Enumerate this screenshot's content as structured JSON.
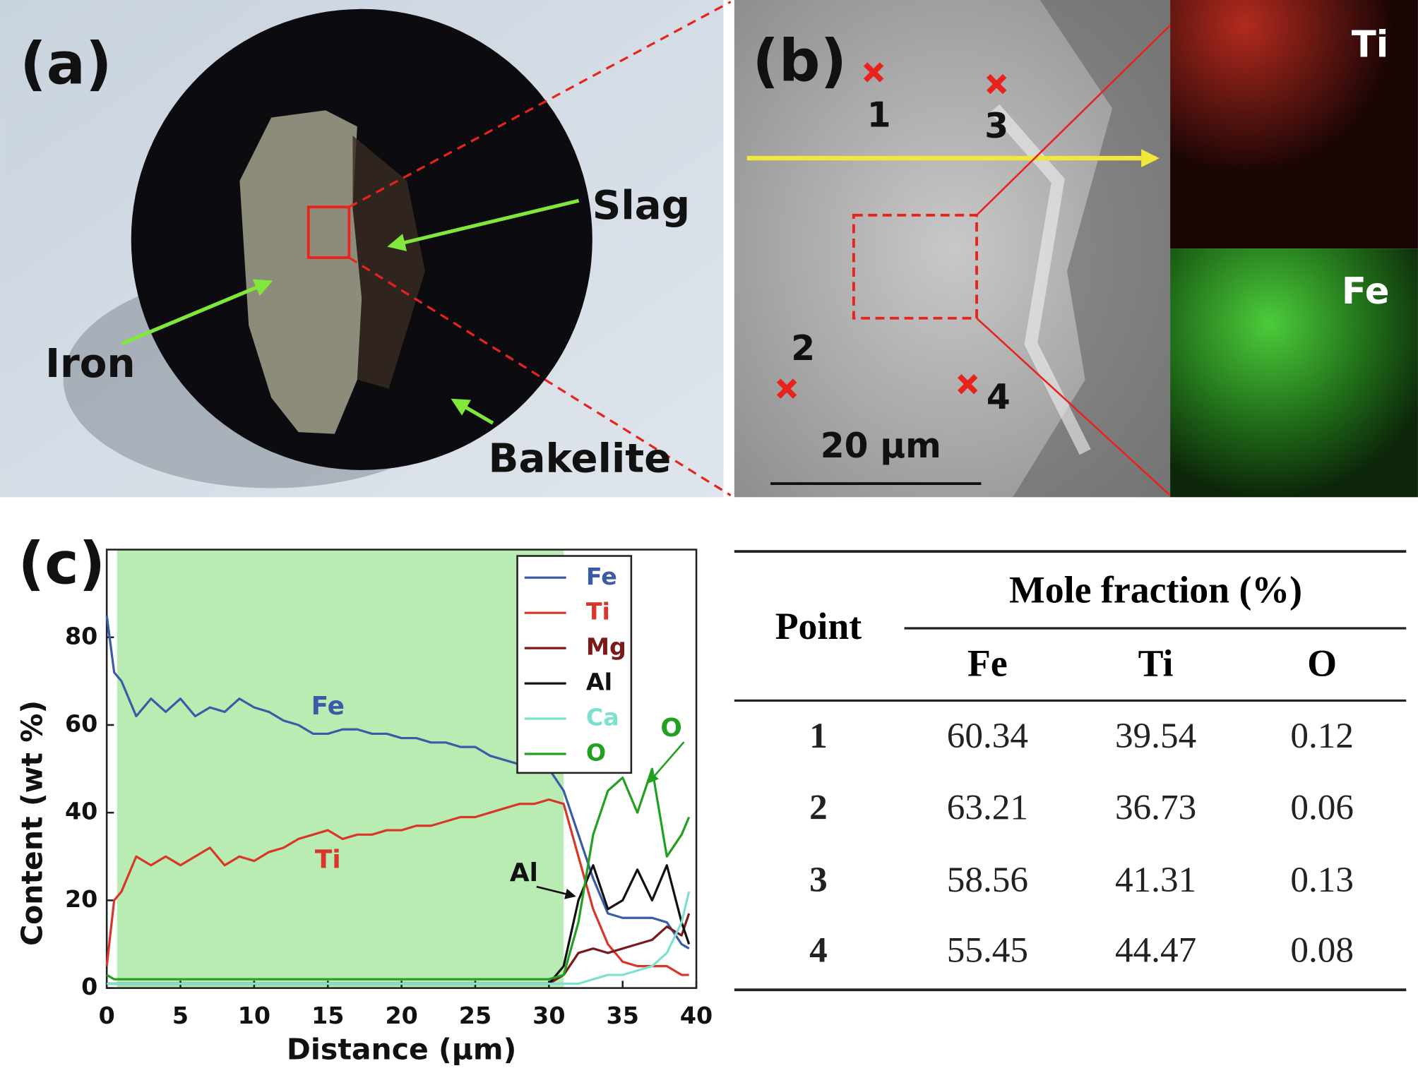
{
  "panel_a": {
    "label": "(a)",
    "slag": "Slag",
    "iron": "Iron",
    "bakelite": "Bakelite"
  },
  "panel_b": {
    "label": "(b)",
    "points": [
      "1",
      "2",
      "3",
      "4"
    ],
    "scale": "20 µm",
    "map_ti": "Ti",
    "map_fe": "Fe"
  },
  "chart_data": {
    "type": "line",
    "label": "(c)",
    "xlabel": "Distance (µm)",
    "ylabel": "Content (wt %)",
    "xlim": [
      0,
      40
    ],
    "ylim": [
      0,
      100
    ],
    "xticks": [
      0,
      5,
      10,
      15,
      20,
      25,
      30,
      35,
      40
    ],
    "yticks": [
      0,
      20,
      40,
      60,
      80
    ],
    "legend": "upper right",
    "shaded_span": {
      "x": [
        0.7,
        31
      ],
      "color": "#b9ecb2"
    },
    "x": [
      0,
      0.5,
      1,
      2,
      3,
      4,
      5,
      6,
      7,
      8,
      9,
      10,
      11,
      12,
      13,
      14,
      15,
      16,
      17,
      18,
      19,
      20,
      21,
      22,
      23,
      24,
      25,
      26,
      27,
      28,
      29,
      30,
      31,
      32,
      33,
      34,
      35,
      36,
      37,
      38,
      39,
      39.5
    ],
    "series": [
      {
        "name": "Fe",
        "color": "#3a5ca6",
        "values": [
          85,
          72,
          70,
          62,
          66,
          63,
          66,
          62,
          64,
          63,
          66,
          64,
          63,
          61,
          60,
          58,
          58,
          59,
          59,
          58,
          58,
          57,
          57,
          56,
          56,
          55,
          55,
          53,
          52,
          51,
          51,
          50,
          45,
          35,
          25,
          17,
          16,
          16,
          16,
          15,
          10,
          9
        ]
      },
      {
        "name": "Ti",
        "color": "#d9362a",
        "values": [
          5,
          20,
          22,
          30,
          28,
          30,
          28,
          30,
          32,
          28,
          30,
          29,
          31,
          32,
          34,
          35,
          36,
          34,
          35,
          35,
          36,
          36,
          37,
          37,
          38,
          39,
          39,
          40,
          41,
          42,
          42,
          43,
          42,
          30,
          18,
          10,
          6,
          5,
          5,
          5,
          3,
          3
        ]
      },
      {
        "name": "Mg",
        "color": "#7a1a1a",
        "values": [
          1,
          1,
          1,
          1,
          1,
          1,
          1,
          1,
          1,
          1,
          1,
          1,
          1,
          1,
          1,
          1,
          1,
          1,
          1,
          1,
          1,
          1,
          1,
          1,
          1,
          1,
          1,
          1,
          1,
          1,
          1,
          1,
          3,
          8,
          9,
          8,
          9,
          10,
          11,
          14,
          12,
          17
        ]
      },
      {
        "name": "Al",
        "color": "#111111",
        "values": [
          1,
          1,
          1,
          1,
          1,
          1,
          1,
          1,
          1,
          1,
          1,
          1,
          1,
          1,
          1,
          1,
          1,
          1,
          1,
          1,
          1,
          1,
          1,
          1,
          1,
          1,
          1,
          1,
          1,
          1,
          1,
          1,
          5,
          20,
          28,
          18,
          20,
          27,
          20,
          28,
          15,
          10
        ]
      },
      {
        "name": "Ca",
        "color": "#7fe0cf",
        "values": [
          1,
          1,
          1,
          1,
          1,
          1,
          1,
          1,
          1,
          1,
          1,
          1,
          1,
          1,
          1,
          1,
          1,
          1,
          1,
          1,
          1,
          1,
          1,
          1,
          1,
          1,
          1,
          1,
          1,
          1,
          1,
          1,
          1,
          1,
          2,
          3,
          3,
          4,
          5,
          8,
          15,
          22
        ]
      },
      {
        "name": "O",
        "color": "#22a022",
        "values": [
          3,
          2,
          2,
          2,
          2,
          2,
          2,
          2,
          2,
          2,
          2,
          2,
          2,
          2,
          2,
          2,
          2,
          2,
          2,
          2,
          2,
          2,
          2,
          2,
          2,
          2,
          2,
          2,
          2,
          2,
          2,
          2,
          3,
          15,
          35,
          45,
          48,
          40,
          50,
          30,
          35,
          39
        ]
      }
    ],
    "annotations": [
      {
        "text": "Fe",
        "x": 15,
        "y": 64,
        "color": "#3a5ca6"
      },
      {
        "text": "Ti",
        "x": 15,
        "y": 29,
        "color": "#d9362a"
      },
      {
        "text": "Al",
        "x": 28.3,
        "y": 26,
        "color": "#111111",
        "arrow_to": [
          31.7,
          21
        ]
      },
      {
        "text": "O",
        "x": 38.3,
        "y": 59,
        "color": "#22a022",
        "arrow_to": [
          36.8,
          47
        ]
      }
    ]
  },
  "table": {
    "header": {
      "point": "Point",
      "group": "Mole fraction (%)",
      "columns": [
        "Fe",
        "Ti",
        "O"
      ]
    },
    "rows": [
      [
        "1",
        "60.34",
        "39.54",
        "0.12"
      ],
      [
        "2",
        "63.21",
        "36.73",
        "0.06"
      ],
      [
        "3",
        "58.56",
        "41.31",
        "0.13"
      ],
      [
        "4",
        "55.45",
        "44.47",
        "0.08"
      ]
    ]
  }
}
